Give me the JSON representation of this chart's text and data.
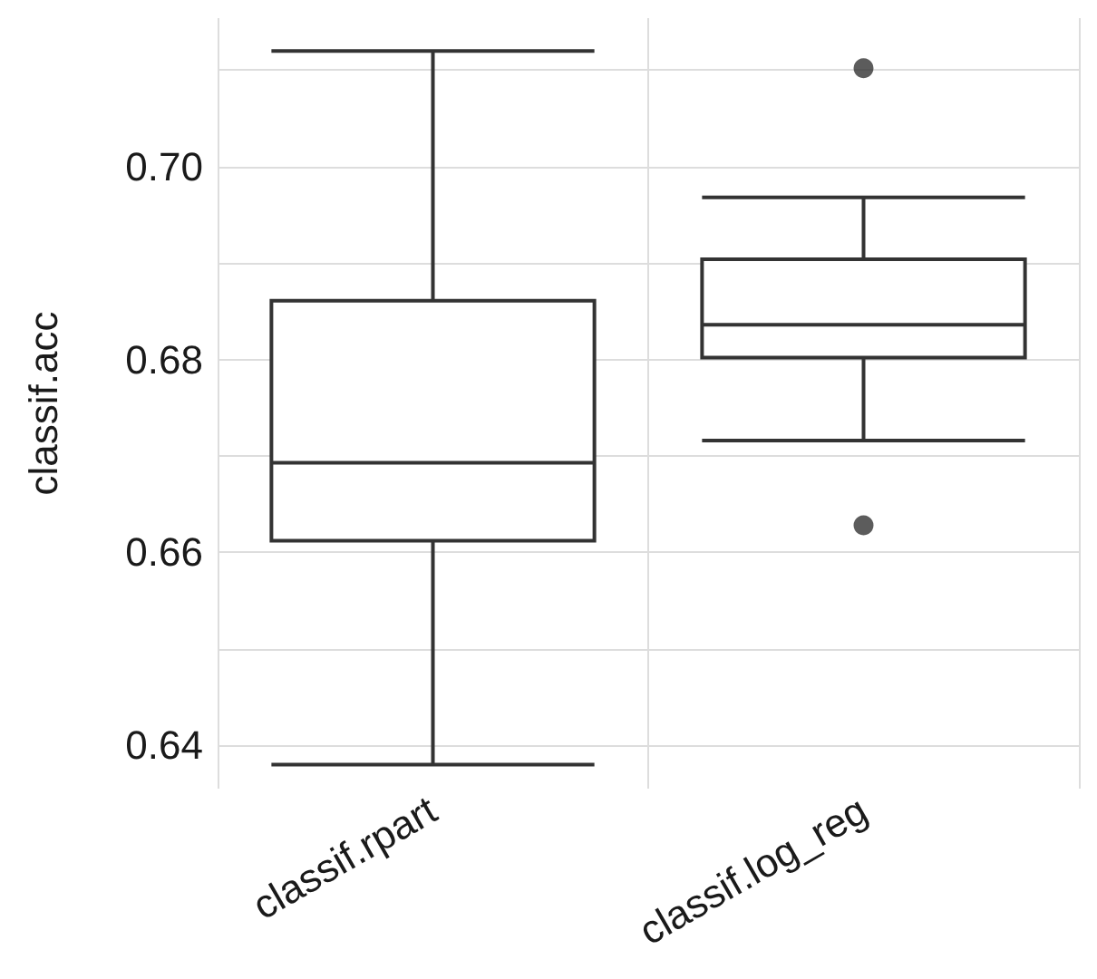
{
  "chart_data": {
    "type": "box",
    "ylabel": "classif.acc",
    "categories": [
      "classif.rpart",
      "classif.log_reg"
    ],
    "series": [
      {
        "color": "#333333",
        "boxes": [
          {
            "low": 0.638,
            "q1": 0.6612,
            "median": 0.6693,
            "q3": 0.6861,
            "high": 0.712
          },
          {
            "low": 0.6716,
            "q1": 0.6802,
            "median": 0.6836,
            "q3": 0.6904,
            "high": 0.6968,
            "outliers": [
              0.7102,
              0.6628
            ]
          }
        ]
      }
    ],
    "ylim": [
      0.6355,
      0.7154
    ],
    "yticks": [
      {
        "value": 0.64,
        "label": "0.64"
      },
      {
        "value": 0.65,
        "label": null
      },
      {
        "value": 0.66,
        "label": "0.66"
      },
      {
        "value": 0.67,
        "label": null
      },
      {
        "value": 0.68,
        "label": "0.68"
      },
      {
        "value": 0.69,
        "label": null
      },
      {
        "value": 0.7,
        "label": "0.70"
      },
      {
        "value": 0.71,
        "label": null
      }
    ],
    "grid": true
  }
}
